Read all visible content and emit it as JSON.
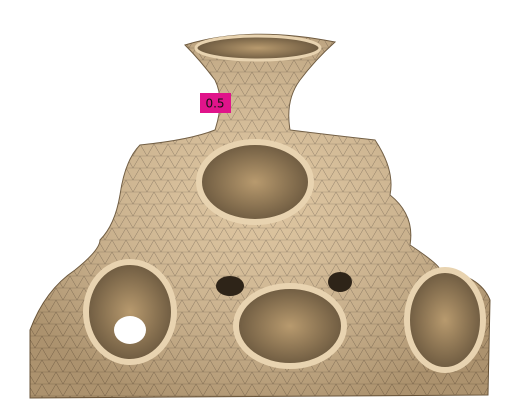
{
  "label": "0.5"
}
